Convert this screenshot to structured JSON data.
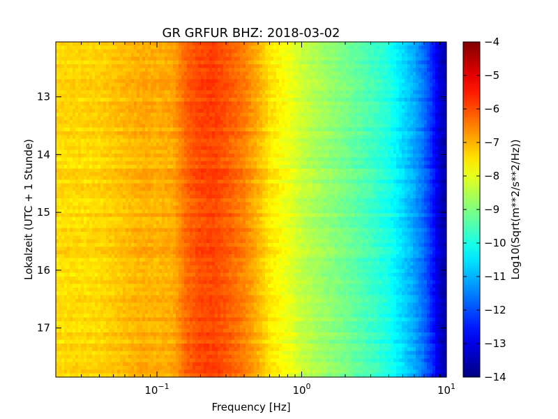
{
  "chart_data": {
    "type": "heatmap",
    "title": "GR GRFUR BHZ: 2018-03-02",
    "xlabel": "Frequency [Hz]",
    "ylabel": "Lokalzeit (UTC + 1 Stunde)",
    "xscale": "log",
    "xlim": [
      0.02,
      10
    ],
    "ylim": [
      12.05,
      17.85
    ],
    "y_inverted": true,
    "x_ticks": [
      {
        "value": 0.1,
        "base": "10",
        "exp": "−1"
      },
      {
        "value": 1,
        "base": "10",
        "exp": "0"
      },
      {
        "value": 10,
        "base": "10",
        "exp": "1"
      }
    ],
    "y_ticks": [
      {
        "value": 13,
        "label": "13"
      },
      {
        "value": 14,
        "label": "14"
      },
      {
        "value": 15,
        "label": "15"
      },
      {
        "value": 16,
        "label": "16"
      },
      {
        "value": 17,
        "label": "17"
      }
    ],
    "spectrum_profile": {
      "frequency_hz": [
        0.02,
        0.04,
        0.06,
        0.08,
        0.1,
        0.13,
        0.16,
        0.2,
        0.25,
        0.3,
        0.4,
        0.5,
        0.6,
        0.8,
        1.0,
        1.5,
        2.0,
        3.0,
        4.0,
        5.0,
        6.0,
        7.0,
        8.0,
        9.0,
        10.0
      ],
      "log10_amplitude": [
        -7.4,
        -7.35,
        -7.1,
        -6.95,
        -7.0,
        -6.9,
        -6.25,
        -5.95,
        -5.9,
        -6.1,
        -6.5,
        -7.0,
        -7.5,
        -7.9,
        -8.3,
        -8.8,
        -9.1,
        -9.6,
        -10.0,
        -10.6,
        -11.1,
        -11.7,
        -12.4,
        -13.2,
        -13.6
      ]
    },
    "colorbar": {
      "label": "Log10(Sqrt(m**2/s**2/Hz))",
      "range": [
        -14,
        -4
      ],
      "ticks": [
        "−4",
        "−5",
        "−6",
        "−7",
        "−8",
        "−9",
        "−10",
        "−11",
        "−12",
        "−13",
        "−14"
      ],
      "colormap": "jet"
    }
  }
}
